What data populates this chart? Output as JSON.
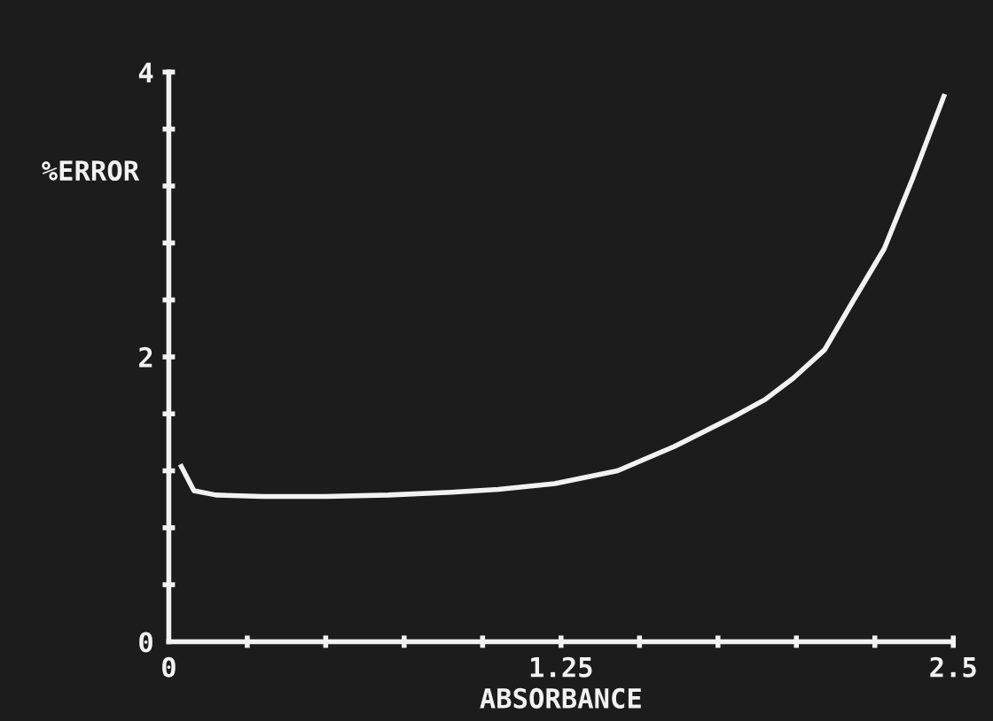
{
  "chart_data": {
    "type": "line",
    "xlabel": "ABSORBANCE",
    "ylabel": "%ERROR",
    "x": [
      0.04,
      0.08,
      0.15,
      0.3,
      0.5,
      0.7,
      0.9,
      1.05,
      1.23,
      1.43,
      1.61,
      1.8,
      1.9,
      1.99,
      2.09,
      2.18,
      2.28,
      2.37,
      2.47
    ],
    "series": [
      {
        "color": "#f2f2f2",
        "values": [
          1.23,
          1.06,
          1.03,
          1.02,
          1.02,
          1.03,
          1.05,
          1.07,
          1.11,
          1.2,
          1.37,
          1.58,
          1.7,
          1.85,
          2.05,
          2.39,
          2.76,
          3.25,
          3.83
        ]
      }
    ],
    "xlim": [
      0,
      2.5
    ],
    "ylim": [
      0,
      4
    ],
    "xticks": [
      0,
      {
        "value": 0.25,
        "label": null
      },
      {
        "value": 0.5,
        "label": null
      },
      {
        "value": 0.75,
        "label": null
      },
      {
        "value": 1.0,
        "label": null
      },
      1.25,
      {
        "value": 1.5,
        "label": null
      },
      {
        "value": 1.75,
        "label": null
      },
      {
        "value": 2.0,
        "label": null
      },
      {
        "value": 2.25,
        "label": null
      },
      2.5
    ],
    "yticks": [
      0,
      {
        "value": 0.4,
        "label": null
      },
      {
        "value": 0.8,
        "label": null
      },
      {
        "value": 1.2,
        "label": null
      },
      {
        "value": 1.6,
        "label": null
      },
      2,
      {
        "value": 2.4,
        "label": null
      },
      {
        "value": 2.8,
        "label": null
      },
      {
        "value": 3.2,
        "label": null
      },
      {
        "value": 3.6,
        "label": null
      },
      4
    ],
    "grid": false,
    "marker": "none",
    "line_style": "solid"
  }
}
